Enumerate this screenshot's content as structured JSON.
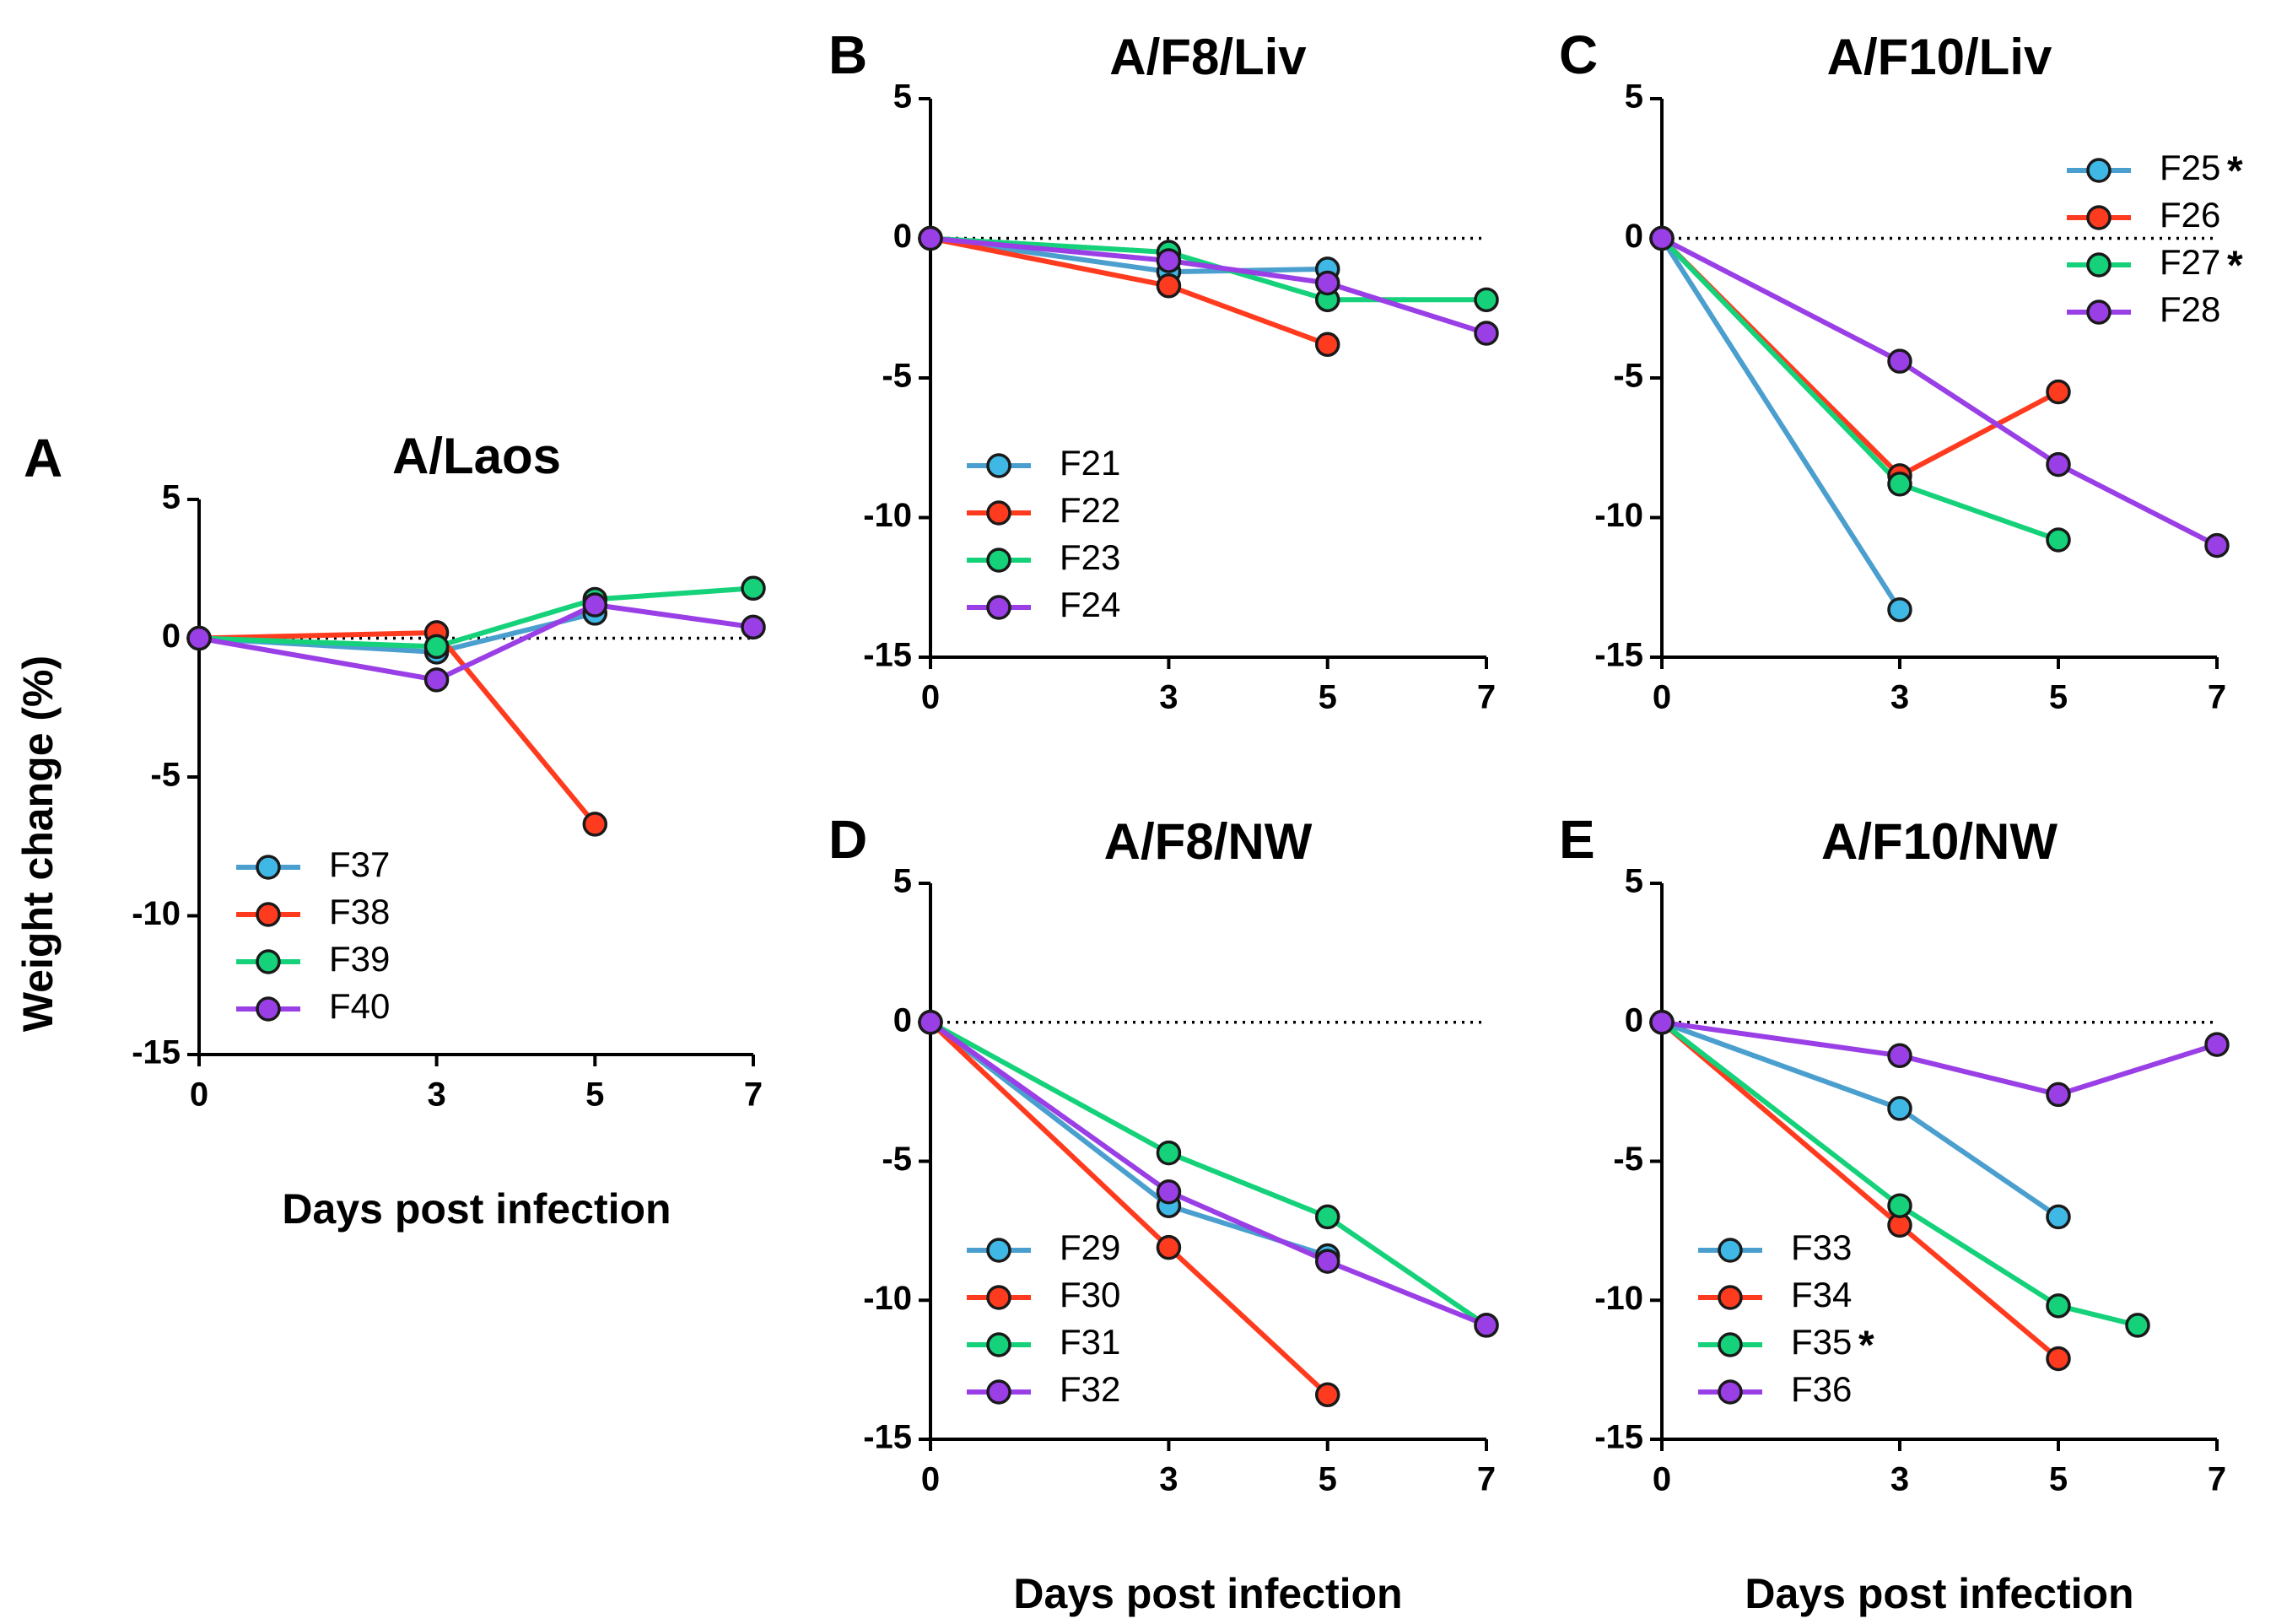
{
  "colors": {
    "cyan": "#3fb8e6",
    "cyan_line": "#4a9fcf",
    "red": "#ff3b1f",
    "green": "#15d27a",
    "purple": "#9a3fe6"
  },
  "x_axis_title": "Days post infection",
  "y_axis_title": "Weight change (%)",
  "chart_data": [
    {
      "id": "A",
      "type": "line",
      "letter": "A",
      "title": "A/Laos",
      "xlabel": "Days post infection",
      "ylabel": "Weight change (%)",
      "xlim": [
        0,
        7
      ],
      "ylim": [
        -15,
        5
      ],
      "xticks": [
        "0",
        "3",
        "5",
        "7"
      ],
      "yticks": [
        "5",
        "0",
        "-5",
        "-10",
        "-15"
      ],
      "series": [
        {
          "name": "F37",
          "color": "cyan",
          "asterisk": "",
          "x": [
            0,
            3,
            5
          ],
          "y": [
            0,
            -0.5,
            0.9
          ]
        },
        {
          "name": "F38",
          "color": "red",
          "asterisk": "",
          "x": [
            0,
            3,
            5
          ],
          "y": [
            0,
            0.2,
            -6.7
          ]
        },
        {
          "name": "F39",
          "color": "green",
          "asterisk": "",
          "x": [
            0,
            3,
            5,
            7
          ],
          "y": [
            0,
            -0.3,
            1.4,
            1.8
          ]
        },
        {
          "name": "F40",
          "color": "purple",
          "asterisk": "",
          "x": [
            0,
            3,
            5,
            7
          ],
          "y": [
            0,
            -1.5,
            1.2,
            0.4
          ]
        }
      ]
    },
    {
      "id": "B",
      "type": "line",
      "letter": "B",
      "title": "A/F8/Liv",
      "xlabel": "",
      "ylabel": "",
      "xlim": [
        0,
        7
      ],
      "ylim": [
        -15,
        5
      ],
      "xticks": [
        "0",
        "3",
        "5",
        "7"
      ],
      "yticks": [
        "5",
        "0",
        "-5",
        "-10",
        "-15"
      ],
      "series": [
        {
          "name": "F21",
          "color": "cyan",
          "asterisk": "",
          "x": [
            0,
            3,
            5
          ],
          "y": [
            0,
            -1.2,
            -1.1
          ]
        },
        {
          "name": "F22",
          "color": "red",
          "asterisk": "",
          "x": [
            0,
            3,
            5
          ],
          "y": [
            0,
            -1.7,
            -3.8
          ]
        },
        {
          "name": "F23",
          "color": "green",
          "asterisk": "",
          "x": [
            0,
            3,
            5,
            7
          ],
          "y": [
            0,
            -0.5,
            -2.2,
            -2.2
          ]
        },
        {
          "name": "F24",
          "color": "purple",
          "asterisk": "",
          "x": [
            0,
            3,
            5,
            7
          ],
          "y": [
            0,
            -0.8,
            -1.6,
            -3.4
          ]
        }
      ]
    },
    {
      "id": "C",
      "type": "line",
      "letter": "C",
      "title": "A/F10/Liv",
      "xlabel": "",
      "ylabel": "",
      "xlim": [
        0,
        7
      ],
      "ylim": [
        -15,
        5
      ],
      "xticks": [
        "0",
        "3",
        "5",
        "7"
      ],
      "yticks": [
        "5",
        "0",
        "-5",
        "-10",
        "-15"
      ],
      "series": [
        {
          "name": "F25",
          "color": "cyan",
          "asterisk": "*",
          "x": [
            0,
            3
          ],
          "y": [
            0,
            -13.3
          ]
        },
        {
          "name": "F26",
          "color": "red",
          "asterisk": "",
          "x": [
            0,
            3,
            5
          ],
          "y": [
            0,
            -8.5,
            -5.5
          ]
        },
        {
          "name": "F27",
          "color": "green",
          "asterisk": "*",
          "x": [
            0,
            3,
            5
          ],
          "y": [
            0,
            -8.8,
            -10.8
          ]
        },
        {
          "name": "F28",
          "color": "purple",
          "asterisk": "",
          "x": [
            0,
            3,
            5,
            7
          ],
          "y": [
            0,
            -4.4,
            -8.1,
            -11.0
          ]
        }
      ]
    },
    {
      "id": "D",
      "type": "line",
      "letter": "D",
      "title": "A/F8/NW",
      "xlabel": "Days post infection",
      "ylabel": "",
      "xlim": [
        0,
        7
      ],
      "ylim": [
        -15,
        5
      ],
      "xticks": [
        "0",
        "3",
        "5",
        "7"
      ],
      "yticks": [
        "5",
        "0",
        "-5",
        "-10",
        "-15"
      ],
      "series": [
        {
          "name": "F29",
          "color": "cyan",
          "asterisk": "",
          "x": [
            0,
            3,
            5
          ],
          "y": [
            0,
            -6.6,
            -8.4
          ]
        },
        {
          "name": "F30",
          "color": "red",
          "asterisk": "",
          "x": [
            0,
            3,
            5
          ],
          "y": [
            0,
            -8.1,
            -13.4
          ]
        },
        {
          "name": "F31",
          "color": "green",
          "asterisk": "",
          "x": [
            0,
            3,
            5,
            7
          ],
          "y": [
            0,
            -4.7,
            -7.0,
            -10.9
          ]
        },
        {
          "name": "F32",
          "color": "purple",
          "asterisk": "",
          "x": [
            0,
            3,
            5,
            7
          ],
          "y": [
            0,
            -6.1,
            -8.6,
            -10.9
          ]
        }
      ]
    },
    {
      "id": "E",
      "type": "line",
      "letter": "E",
      "title": "A/F10/NW",
      "xlabel": "Days post infection",
      "ylabel": "",
      "xlim": [
        0,
        7
      ],
      "ylim": [
        -15,
        5
      ],
      "xticks": [
        "0",
        "3",
        "5",
        "7"
      ],
      "yticks": [
        "5",
        "0",
        "-5",
        "-10",
        "-15"
      ],
      "series": [
        {
          "name": "F33",
          "color": "cyan",
          "asterisk": "",
          "x": [
            0,
            3,
            5
          ],
          "y": [
            0,
            -3.1,
            -7.0
          ]
        },
        {
          "name": "F34",
          "color": "red",
          "asterisk": "",
          "x": [
            0,
            3,
            5
          ],
          "y": [
            0,
            -7.3,
            -12.1
          ]
        },
        {
          "name": "F35",
          "color": "green",
          "asterisk": "*",
          "x": [
            0,
            3,
            5,
            6
          ],
          "y": [
            0,
            -6.6,
            -10.2,
            -10.9
          ]
        },
        {
          "name": "F36",
          "color": "purple",
          "asterisk": "",
          "x": [
            0,
            3,
            5,
            7
          ],
          "y": [
            0,
            -1.2,
            -2.6,
            -0.8
          ]
        }
      ]
    }
  ]
}
